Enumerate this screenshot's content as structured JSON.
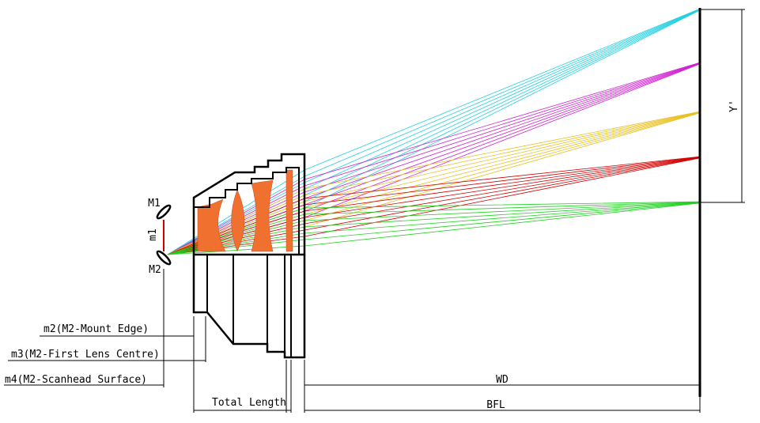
{
  "labels": {
    "mirror_1": "M1",
    "mirror_2": "M2",
    "mirror_spacing": "m1",
    "image_height": "Y'"
  },
  "dimensions": {
    "m2": "m2(M2-Mount Edge)",
    "m3": "m3(M2-First Lens Centre)",
    "m4": "m4(M2-Scanhead Surface)",
    "wd": "WD",
    "total_length": "Total Length",
    "bfl": "BFL"
  }
}
